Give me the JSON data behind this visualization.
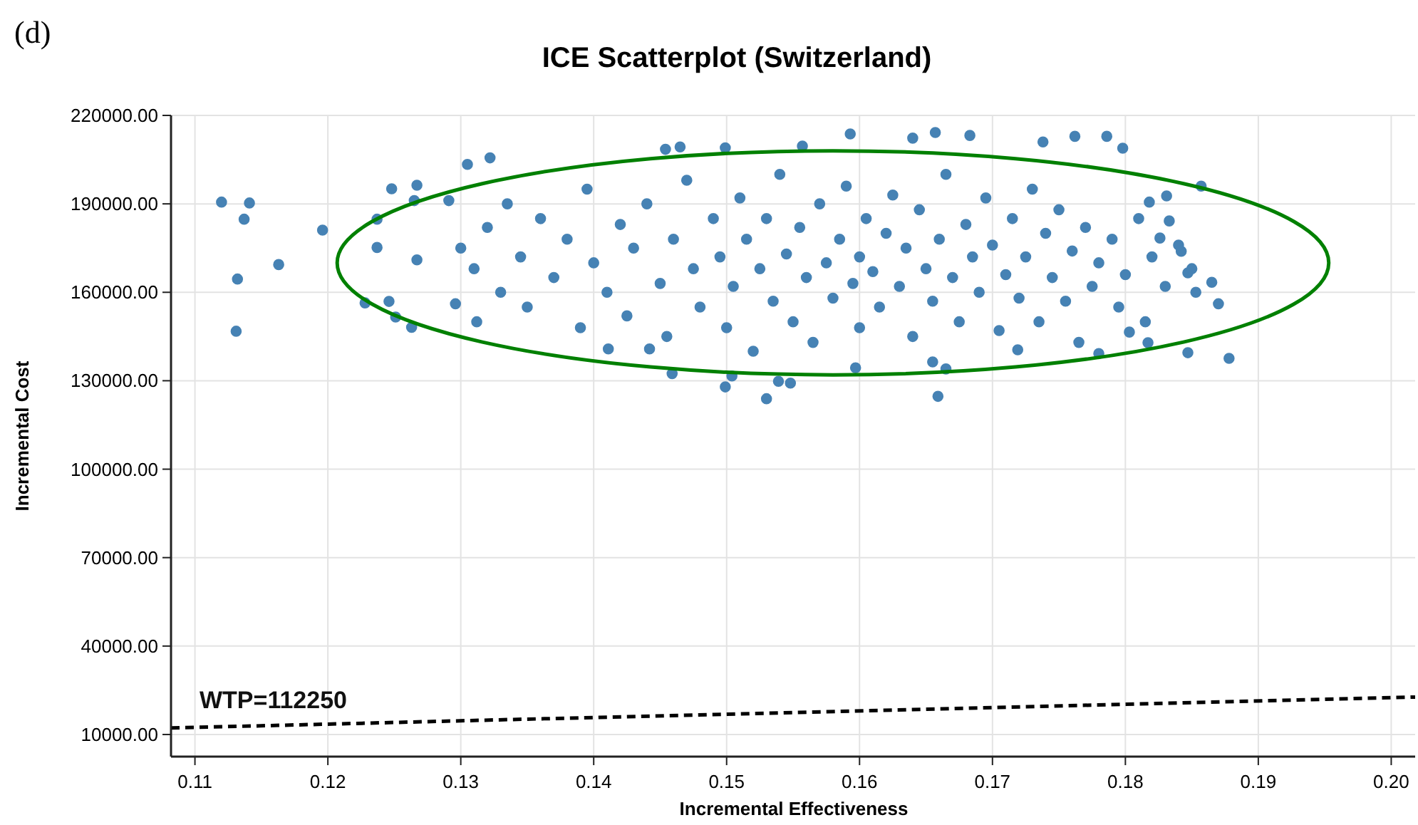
{
  "chart_data": {
    "type": "scatter",
    "title": "ICE Scatterplot (Switzerland)",
    "xlabel": "Incremental Effectiveness",
    "ylabel": "Incremental Cost",
    "annotations": [
      "(d)"
    ],
    "xlim": [
      0.1082,
      0.2018
    ],
    "ylim": [
      2500,
      220000
    ],
    "xticks": [
      {
        "value": 0.11,
        "label": "0.11"
      },
      {
        "value": 0.12,
        "label": "0.12"
      },
      {
        "value": 0.13,
        "label": "0.13"
      },
      {
        "value": 0.14,
        "label": "0.14"
      },
      {
        "value": 0.15,
        "label": "0.15"
      },
      {
        "value": 0.16,
        "label": "0.16"
      },
      {
        "value": 0.17,
        "label": "0.17"
      },
      {
        "value": 0.18,
        "label": "0.18"
      },
      {
        "value": 0.19,
        "label": "0.19"
      },
      {
        "value": 0.2,
        "label": "0.20"
      }
    ],
    "yticks": [
      {
        "value": 10000,
        "label": "10000.00"
      },
      {
        "value": 40000,
        "label": "40000.00"
      },
      {
        "value": 70000,
        "label": "70000.00"
      },
      {
        "value": 100000,
        "label": "100000.00"
      },
      {
        "value": 130000,
        "label": "130000.00"
      },
      {
        "value": 160000,
        "label": "160000.00"
      },
      {
        "value": 190000,
        "label": "190000.00"
      },
      {
        "value": 220000,
        "label": "220000.00"
      }
    ],
    "grid": true,
    "series": [
      {
        "color": "#4682b4",
        "marker": "circle",
        "x": [
          0.112,
          0.1141,
          0.1137,
          0.1132,
          0.1131,
          0.1163,
          0.1196,
          0.1228,
          0.1246,
          0.1251,
          0.1263,
          0.1237,
          0.1248,
          0.1267,
          0.1265,
          0.1237,
          0.1267,
          0.1305,
          0.1322,
          0.1291,
          0.1296,
          0.1312,
          0.1593,
          0.1454,
          0.1465,
          0.1499,
          0.1557,
          0.164,
          0.1657,
          0.1683,
          0.153,
          0.1659,
          0.1499,
          0.1539,
          0.1548,
          0.1459,
          0.1504,
          0.1597,
          0.1655,
          0.1665,
          0.1411,
          0.1442,
          0.1762,
          0.1786,
          0.1798,
          0.1738,
          0.1857,
          0.1878,
          0.1847,
          0.187,
          0.1865,
          0.1853,
          0.1831,
          0.1833,
          0.1818,
          0.1817,
          0.178,
          0.1719,
          0.1803,
          0.1842,
          0.1847,
          0.1826,
          0.13,
          0.131,
          0.132,
          0.133,
          0.1335,
          0.1345,
          0.135,
          0.136,
          0.137,
          0.138,
          0.139,
          0.1395,
          0.14,
          0.141,
          0.142,
          0.1425,
          0.143,
          0.144,
          0.145,
          0.1455,
          0.146,
          0.147,
          0.1475,
          0.148,
          0.149,
          0.1495,
          0.15,
          0.1505,
          0.151,
          0.1515,
          0.152,
          0.1525,
          0.153,
          0.1535,
          0.154,
          0.1545,
          0.155,
          0.1555,
          0.156,
          0.1565,
          0.157,
          0.1575,
          0.158,
          0.1585,
          0.159,
          0.1595,
          0.16,
          0.16,
          0.1605,
          0.161,
          0.1615,
          0.162,
          0.1625,
          0.163,
          0.1635,
          0.164,
          0.1645,
          0.165,
          0.1655,
          0.166,
          0.1665,
          0.167,
          0.1675,
          0.168,
          0.1685,
          0.169,
          0.1695,
          0.17,
          0.1705,
          0.171,
          0.1715,
          0.172,
          0.1725,
          0.173,
          0.1735,
          0.174,
          0.1745,
          0.175,
          0.1755,
          0.176,
          0.1765,
          0.177,
          0.1775,
          0.178,
          0.179,
          0.1795,
          0.18,
          0.181,
          0.1815,
          0.182,
          0.183,
          0.184,
          0.185
        ],
        "values": [
          190600,
          190300,
          184800,
          164500,
          146800,
          169400,
          181100,
          156400,
          156900,
          151600,
          148100,
          184800,
          195100,
          196300,
          191100,
          175200,
          171000,
          203400,
          205600,
          191100,
          156100,
          150000,
          213700,
          208500,
          209300,
          209000,
          209600,
          212300,
          214200,
          213200,
          123900,
          124700,
          127900,
          129800,
          129200,
          132400,
          131600,
          134400,
          136400,
          134000,
          140800,
          140800,
          212900,
          212900,
          208900,
          211000,
          196000,
          137600,
          139500,
          156100,
          163400,
          160000,
          192700,
          184200,
          190600,
          142900,
          139200,
          140500,
          146500,
          173900,
          166600,
          178400,
          175000,
          168000,
          182000,
          160000,
          190000,
          172000,
          155000,
          185000,
          165000,
          178000,
          148000,
          195000,
          170000,
          160000,
          183000,
          152000,
          175000,
          190000,
          163000,
          145000,
          178000,
          198000,
          168000,
          155000,
          185000,
          172000,
          148000,
          162000,
          192000,
          178000,
          140000,
          168000,
          185000,
          157000,
          200000,
          173000,
          150000,
          182000,
          165000,
          143000,
          190000,
          170000,
          158000,
          178000,
          196000,
          163000,
          172000,
          148000,
          185000,
          167000,
          155000,
          180000,
          193000,
          162000,
          175000,
          145000,
          188000,
          168000,
          157000,
          178000,
          200000,
          165000,
          150000,
          183000,
          172000,
          160000,
          192000,
          176000,
          147000,
          166000,
          185000,
          158000,
          172000,
          195000,
          150000,
          180000,
          165000,
          188000,
          157000,
          174000,
          143000,
          182000,
          162000,
          170000,
          178000,
          155000,
          166000,
          185000,
          150000,
          172000,
          162000,
          176000,
          168000
        ]
      },
      {
        "type": "line",
        "name": "WTP=112250",
        "color": "#000000",
        "marker": "none",
        "line_style": "dashed",
        "x": [
          0.1082,
          0.2018
        ],
        "values": [
          12200,
          22700
        ]
      }
    ]
  }
}
